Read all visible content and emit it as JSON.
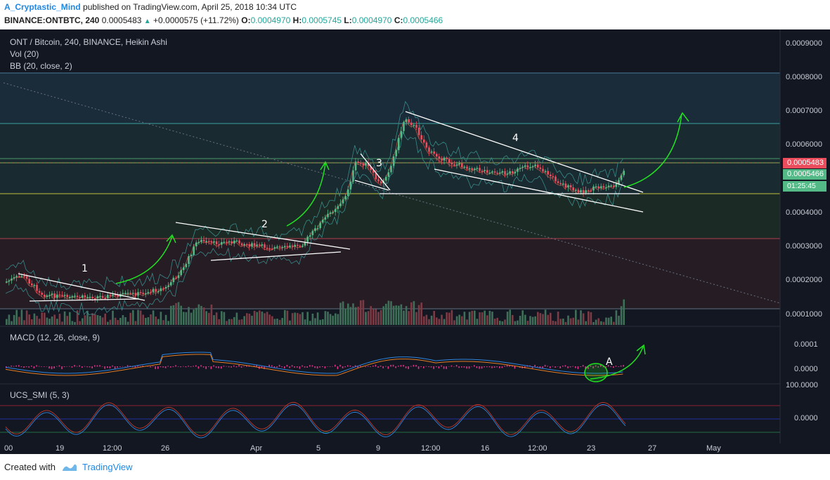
{
  "header": {
    "author": "A_Cryptastic_Mind",
    "published": "published on TradingView.com, April 25, 2018 10:34 UTC",
    "symbol": "BINANCE:ONTBTC, 240",
    "last": "0.0005483",
    "change": "+0.0000575 (+11.72%)",
    "o_label": "O:",
    "o_value": "0.0004970",
    "h_label": "H:",
    "h_value": "0.0005745",
    "l_label": "L:",
    "l_value": "0.0004970",
    "c_label": "C:",
    "c_value": "0.0005466"
  },
  "legend": {
    "title": "ONT / Bitcoin, 240, BINANCE, Heikin Ashi",
    "vol": "Vol (20)",
    "bb": "BB (20, close, 2)",
    "macd": "MACD (12, 26, close, 9)",
    "smi": "UCS_SMI (5, 3)"
  },
  "price_axis": [
    "0.0009000",
    "0.0008000",
    "0.0007000",
    "0.0006000",
    "0.0004000",
    "0.0003000",
    "0.0002000",
    "0.0001000"
  ],
  "macd_axis": [
    "0.0001",
    "0.0000"
  ],
  "smi_axis": [
    "100.0000",
    "0.0000"
  ],
  "price_tags": {
    "last": "0.0005483",
    "close": "0.0005466",
    "timer": "01:25:45"
  },
  "time_axis": [
    "00",
    "19",
    "12:00",
    "26",
    "Apr",
    "5",
    "9",
    "12:00",
    "16",
    "12:00",
    "23",
    "27",
    "May"
  ],
  "annotations": {
    "n1": "1",
    "n2": "2",
    "n3": "3",
    "n4": "4",
    "a": "A"
  },
  "colors": {
    "bg": "#131722",
    "up": "#53b987",
    "down": "#eb4d5c",
    "accent": "#1e88e5"
  },
  "footer": {
    "created": "Created with",
    "brand": "TradingView"
  }
}
